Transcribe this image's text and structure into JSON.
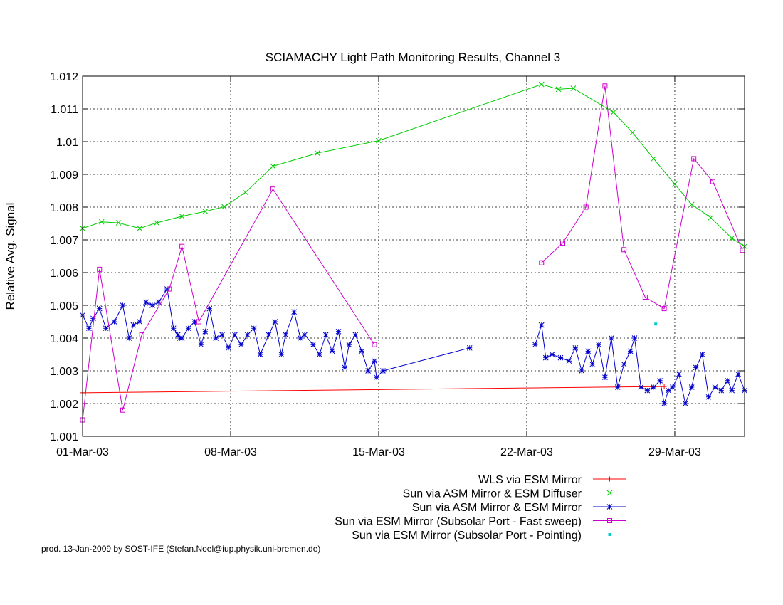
{
  "footer": "prod. 13-Jan-2009 by SOST-IFE (Stefan.Noel@iup.physik.uni-bremen.de)",
  "chart_data": {
    "type": "line",
    "title": "SCIAMACHY Light Path Monitoring Results, Channel 3",
    "xlabel": "",
    "ylabel": "Relative Avg. Signal",
    "x_unit": "day of March 2003 (1.0 = 01-Mar-03 00:00)",
    "xlim": [
      1.0,
      32.3
    ],
    "ylim": [
      1.001,
      1.012
    ],
    "x_ticks": [
      {
        "value": 1,
        "label": "01-Mar-03"
      },
      {
        "value": 8,
        "label": "08-Mar-03"
      },
      {
        "value": 15,
        "label": "15-Mar-03"
      },
      {
        "value": 22,
        "label": "22-Mar-03"
      },
      {
        "value": 29,
        "label": "29-Mar-03"
      }
    ],
    "y_ticks": [
      {
        "value": 1.001,
        "label": "1.001"
      },
      {
        "value": 1.002,
        "label": "1.002"
      },
      {
        "value": 1.003,
        "label": "1.003"
      },
      {
        "value": 1.004,
        "label": "1.004"
      },
      {
        "value": 1.005,
        "label": "1.005"
      },
      {
        "value": 1.006,
        "label": "1.006"
      },
      {
        "value": 1.007,
        "label": "1.007"
      },
      {
        "value": 1.008,
        "label": "1.008"
      },
      {
        "value": 1.009,
        "label": "1.009"
      },
      {
        "value": 1.01,
        "label": "1.01"
      },
      {
        "value": 1.011,
        "label": "1.011"
      },
      {
        "value": 1.012,
        "label": "1.012"
      }
    ],
    "grid": true,
    "legend_position": "bottom-right below plot",
    "series": [
      {
        "name": "WLS via ESM Mirror",
        "color": "#ff0000",
        "marker": "plus",
        "line": true,
        "x": [
          1.0,
          28.5
        ],
        "y": [
          1.00233,
          1.00252
        ]
      },
      {
        "name": "Sun via ASM Mirror & ESM Diffuser",
        "color": "#00cc00",
        "marker": "cross",
        "line": true,
        "x": [
          1.0,
          1.9,
          2.7,
          3.7,
          4.5,
          5.7,
          6.8,
          7.7,
          8.7,
          10.0,
          12.1,
          15.0,
          22.7,
          23.5,
          24.2,
          26.1,
          27.0,
          28.0,
          29.0,
          29.8,
          30.7,
          31.7,
          32.3
        ],
        "y": [
          1.00735,
          1.00755,
          1.00752,
          1.00735,
          1.00752,
          1.00772,
          1.00787,
          1.00801,
          1.00845,
          1.00925,
          1.00965,
          1.01003,
          1.01175,
          1.0116,
          1.01163,
          1.0109,
          1.01028,
          1.00948,
          1.0087,
          1.00808,
          1.00768,
          1.00705,
          1.0068
        ]
      },
      {
        "name": "Sun via ASM Mirror & ESM Mirror",
        "color": "#0000cc",
        "marker": "star",
        "line": true,
        "x": [
          1.0,
          1.3,
          1.5,
          1.8,
          2.1,
          2.5,
          2.9,
          3.2,
          3.4,
          3.7,
          4.0,
          4.3,
          4.6,
          5.0,
          5.3,
          5.5,
          5.6,
          5.7,
          6.0,
          6.3,
          6.6,
          6.8,
          7.0,
          7.3,
          7.6,
          7.9,
          8.2,
          8.5,
          8.8,
          9.1,
          9.4,
          9.8,
          10.1,
          10.4,
          10.6,
          11.0,
          11.3,
          11.5,
          11.9,
          12.2,
          12.5,
          12.8,
          13.1,
          13.4,
          13.6,
          13.9,
          14.2,
          14.5,
          14.8,
          14.9,
          15.2,
          19.3
        ],
        "y": [
          1.0047,
          1.0043,
          1.0046,
          1.0049,
          1.0043,
          1.0045,
          1.005,
          1.004,
          1.0044,
          1.0045,
          1.0051,
          1.005,
          1.0051,
          1.0055,
          1.0043,
          1.0041,
          1.004,
          1.004,
          1.0043,
          1.0045,
          1.0038,
          1.0042,
          1.0049,
          1.004,
          1.0041,
          1.0037,
          1.0041,
          1.0038,
          1.0041,
          1.0043,
          1.0035,
          1.0041,
          1.0045,
          1.0035,
          1.0041,
          1.0048,
          1.004,
          1.0041,
          1.0038,
          1.0035,
          1.0041,
          1.0036,
          1.0042,
          1.0031,
          1.0038,
          1.0041,
          1.0036,
          1.003,
          1.0033,
          1.0028,
          1.003,
          1.0037
        ]
      },
      {
        "name": "Sun via ASM Mirror & ESM Mirror (cont.)",
        "color": "#0000cc",
        "marker": "star",
        "line": true,
        "legend": false,
        "x": [
          22.4,
          22.7,
          22.9,
          23.2,
          23.6,
          24.0,
          24.3,
          24.6,
          24.9,
          25.1,
          25.4,
          25.7,
          26.0,
          26.3,
          26.6,
          26.9,
          27.1,
          27.4,
          27.7,
          28.0,
          28.3,
          28.5,
          28.7,
          28.9,
          29.2,
          29.5,
          29.8,
          30.0,
          30.3,
          30.6,
          30.9,
          31.2,
          31.5,
          31.7,
          32.0,
          32.3
        ],
        "y": [
          1.0038,
          1.0044,
          1.0034,
          1.0035,
          1.0034,
          1.0033,
          1.0037,
          1.003,
          1.0036,
          1.0032,
          1.0038,
          1.0028,
          1.004,
          1.0025,
          1.0032,
          1.0036,
          1.004,
          1.0025,
          1.0024,
          1.0025,
          1.0027,
          1.002,
          1.0024,
          1.0025,
          1.0029,
          1.002,
          1.0025,
          1.0031,
          1.0035,
          1.0022,
          1.0025,
          1.0024,
          1.0027,
          1.0024,
          1.0029,
          1.0024
        ]
      },
      {
        "name": "Sun via ESM Mirror (Subsolar Port - Fast sweep)",
        "color": "#cc00cc",
        "marker": "square",
        "line": true,
        "x": [
          1.0,
          1.8,
          2.9,
          3.8,
          5.1,
          5.7,
          6.5,
          10.0,
          14.8
        ],
        "y": [
          1.0015,
          1.0061,
          1.0018,
          1.0041,
          1.0055,
          1.0068,
          1.0045,
          1.00855,
          1.0038
        ]
      },
      {
        "name": "Sun via ESM Mirror (Subsolar Port - Fast sweep) (cont.)",
        "color": "#cc00cc",
        "marker": "square",
        "line": true,
        "legend": false,
        "x": [
          22.7,
          23.7,
          24.8,
          25.7,
          26.6,
          27.6,
          28.5,
          29.9,
          30.8,
          32.2
        ],
        "y": [
          1.0063,
          1.0069,
          1.008,
          1.0117,
          1.0067,
          1.00525,
          1.0049,
          1.00948,
          1.00878,
          1.00668
        ]
      },
      {
        "name": "Sun via ESM Mirror (Subsolar Port - Pointing)",
        "color": "#00cccc",
        "marker": "dot",
        "line": false,
        "x": [
          28.1
        ],
        "y": [
          1.00443
        ]
      }
    ]
  }
}
